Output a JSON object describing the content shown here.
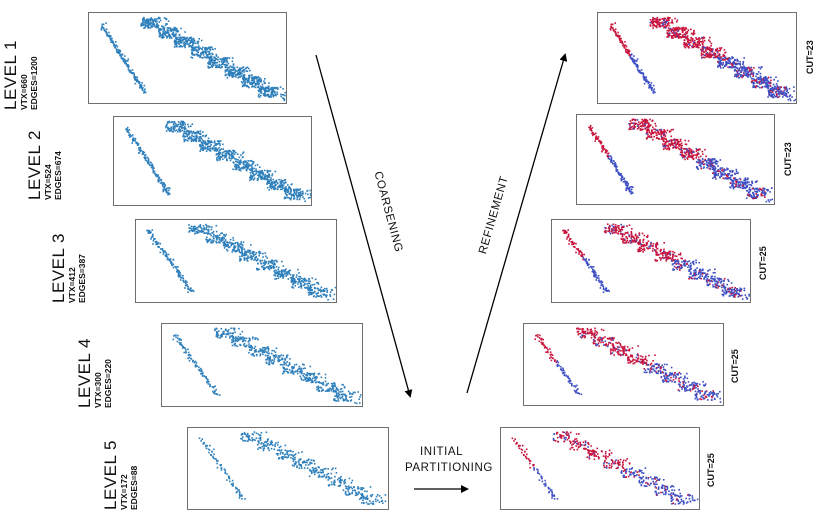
{
  "colors": {
    "coarse": "#2d7fbb",
    "part_a": "#c8143c",
    "part_b": "#3d4fc4",
    "frame": "#6f6f6f",
    "arrow": "#000000"
  },
  "levels": [
    {
      "title": "LEVEL 1",
      "vtx": "VTX=660",
      "edges": "EDGES=1200",
      "cut": "CUT=23",
      "density": 1.0
    },
    {
      "title": "LEVEL 2",
      "vtx": "VTX=524",
      "edges": "EDGES=674",
      "cut": "CUT=23",
      "density": 0.8
    },
    {
      "title": "LEVEL 3",
      "vtx": "VTX=412",
      "edges": "EDGES=387",
      "cut": "CUT=25",
      "density": 0.6
    },
    {
      "title": "LEVEL 4",
      "vtx": "VTX=300",
      "edges": "EDGES=220",
      "cut": "CUT=25",
      "density": 0.45
    },
    {
      "title": "LEVEL 5",
      "vtx": "VTX=172",
      "edges": "EDGES=88",
      "cut": "CUT=25",
      "density": 0.3
    }
  ],
  "flow": {
    "coarsening": "COARSENING",
    "refinement": "REFINEMENT",
    "initial_line1": "INITIAL",
    "initial_line2": "PARTITIONING"
  }
}
